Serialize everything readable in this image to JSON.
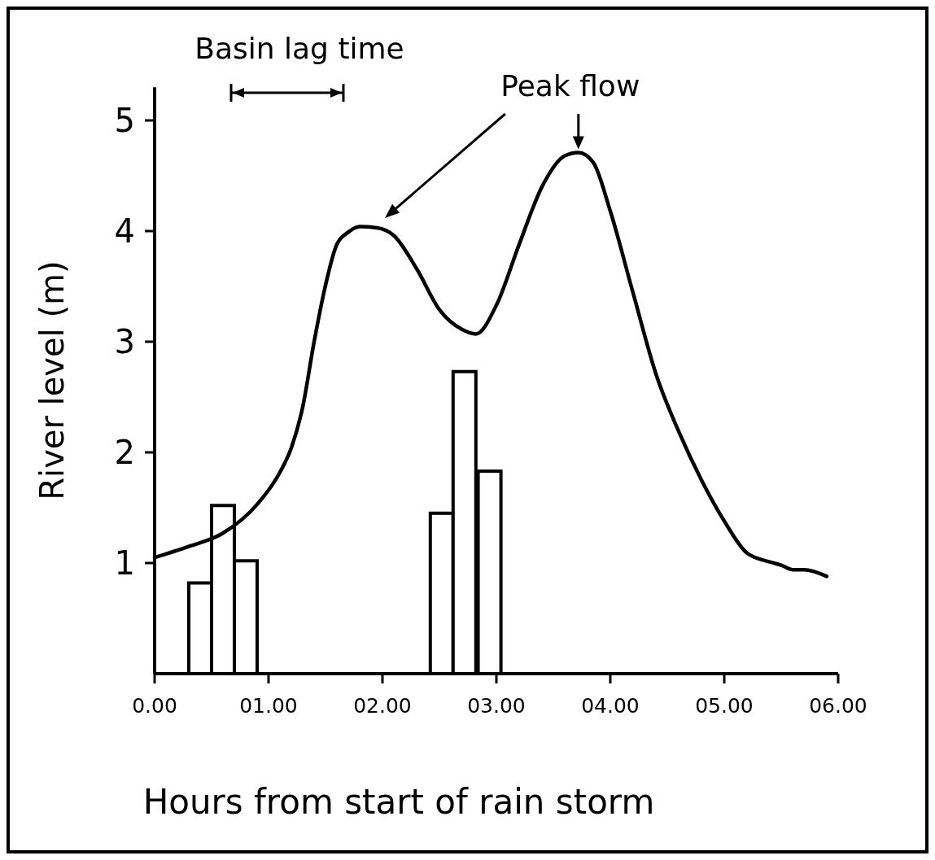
{
  "chart_data": {
    "type": "line",
    "xlabel": "Hours from start of rain storm",
    "ylabel": "River level (m)",
    "xlim": [
      0,
      6
    ],
    "ylim": [
      0,
      5.3
    ],
    "xticks": [
      {
        "value": 0,
        "label": "0.00"
      },
      {
        "value": 1,
        "label": "01.00"
      },
      {
        "value": 2,
        "label": "02.00"
      },
      {
        "value": 3,
        "label": "03.00"
      },
      {
        "value": 4,
        "label": "04.00"
      },
      {
        "value": 5,
        "label": "05.00"
      },
      {
        "value": 6,
        "label": "06.00"
      }
    ],
    "yticks": [
      1,
      2,
      3,
      4,
      5
    ],
    "series": [
      {
        "type": "bar",
        "color": "#ffffff",
        "x": [
          0.4,
          0.6,
          0.8,
          2.52,
          2.72,
          2.94
        ],
        "values": [
          0.82,
          1.52,
          1.02,
          1.45,
          2.73,
          1.83
        ]
      },
      {
        "color": "#000000",
        "x": [
          0,
          0.3,
          0.6,
          0.9,
          1.1,
          1.2,
          1.3,
          1.4,
          1.5,
          1.6,
          1.7,
          1.8,
          1.95,
          2.1,
          2.3,
          2.5,
          2.7,
          2.82,
          3.0,
          3.2,
          3.4,
          3.6,
          3.72,
          3.85,
          4.0,
          4.2,
          4.4,
          4.6,
          4.8,
          5.0,
          5.2,
          5.4,
          5.5,
          5.6,
          5.7,
          5.9
        ],
        "values": [
          1.05,
          1.15,
          1.27,
          1.53,
          1.82,
          2.04,
          2.41,
          3.0,
          3.51,
          3.88,
          3.99,
          4.04,
          4.03,
          3.96,
          3.66,
          3.29,
          3.11,
          3.07,
          3.33,
          3.88,
          4.4,
          4.68,
          4.71,
          4.62,
          4.18,
          3.44,
          2.71,
          2.19,
          1.75,
          1.38,
          1.09,
          1.01,
          0.98,
          0.94,
          0.94,
          0.88
        ]
      }
    ],
    "annotations": [
      "Basin lag time",
      {
        "text": "Peak flow",
        "x": 3.72,
        "y": 4.71
      }
    ]
  }
}
